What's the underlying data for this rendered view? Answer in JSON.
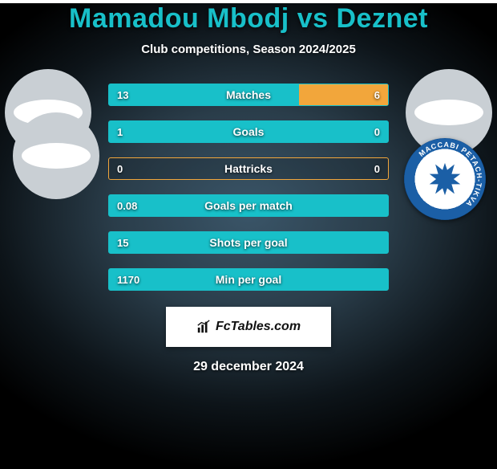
{
  "title": {
    "player_a": "Mamadou Mbodj",
    "vs": "vs",
    "player_b": "Deznet",
    "color": "#18c0c9"
  },
  "subtitle": "Club competitions, Season 2024/2025",
  "accent_a": "#18c0c9",
  "accent_b": "#f2a63b",
  "bar_border_a": "#18c0c9",
  "bar_border_b": "#f2a63b",
  "stats": [
    {
      "label": "Matches",
      "a": "13",
      "b": "6",
      "pct_a": 68,
      "pct_b": 32,
      "fill_b": true
    },
    {
      "label": "Goals",
      "a": "1",
      "b": "0",
      "pct_a": 100,
      "pct_b": 0,
      "fill_b": true
    },
    {
      "label": "Hattricks",
      "a": "0",
      "b": "0",
      "pct_a": 0,
      "pct_b": 0,
      "fill_b": false
    },
    {
      "label": "Goals per match",
      "a": "0.08",
      "b": "",
      "pct_a": 100,
      "pct_b": 0,
      "fill_b": false
    },
    {
      "label": "Shots per goal",
      "a": "15",
      "b": "",
      "pct_a": 100,
      "pct_b": 0,
      "fill_b": false
    },
    {
      "label": "Min per goal",
      "a": "1170",
      "b": "",
      "pct_a": 100,
      "pct_b": 0,
      "fill_b": false
    }
  ],
  "badge": {
    "ring_text": "MACCABI PETACH-TIKVA",
    "star_color": "#1b5fa6"
  },
  "fctables": "FcTables.com",
  "date": "29 december 2024"
}
